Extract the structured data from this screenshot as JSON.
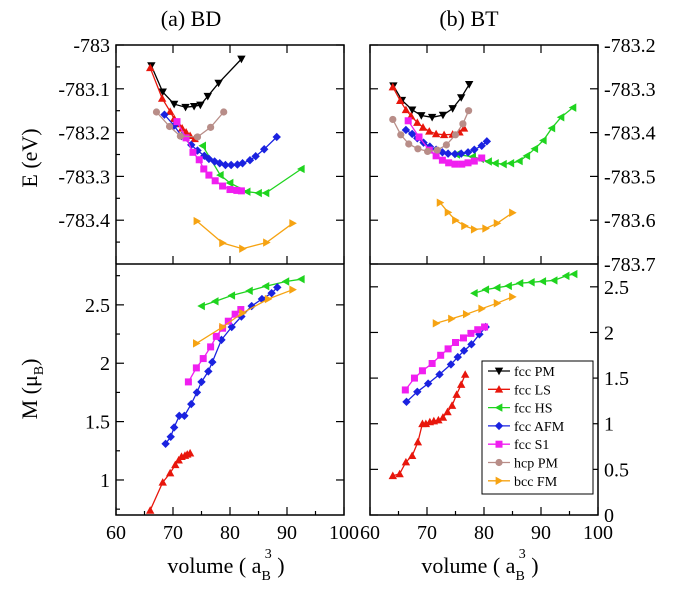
{
  "chart_data": [
    {
      "type": "line",
      "panel": "energy-bd",
      "title": "(a) BD",
      "ylabel": "E (eV)",
      "ylim": [
        -783.5,
        -783.0
      ],
      "yticks": [
        "-783",
        "-783.1",
        "-783.2",
        "-783.3",
        "-783.4"
      ],
      "xlim": [
        60,
        100
      ],
      "series": [
        {
          "name": "fcc PM",
          "x": [
            66.2,
            68.2,
            70.2,
            72.2,
            73.7,
            74.8,
            76.1,
            78.0,
            82.0
          ],
          "y": [
            -783.047,
            -783.107,
            -783.135,
            -783.142,
            -783.14,
            -783.137,
            -783.117,
            -783.087,
            -783.032
          ]
        },
        {
          "name": "fcc LS",
          "x": [
            66.0,
            68.1,
            69.5,
            70.2,
            70.9,
            71.6,
            72.3,
            73.0,
            73.8
          ],
          "y": [
            -783.052,
            -783.122,
            -783.152,
            -783.168,
            -783.18,
            -783.19,
            -783.199,
            -783.207,
            -783.214
          ]
        },
        {
          "name": "fcc HS",
          "x": [
            75.2,
            78.3,
            80.0,
            83.0,
            85.0,
            86.3,
            92.5
          ],
          "y": [
            -783.23,
            -783.297,
            -783.315,
            -783.335,
            -783.338,
            -783.338,
            -783.283
          ]
        },
        {
          "name": "fcc AFM",
          "x": [
            68.5,
            70.2,
            71.5,
            73.2,
            74.3,
            75.5,
            76.3,
            77.3,
            78.2,
            79.2,
            80.2,
            81.3,
            82.2,
            83.5,
            84.5,
            86.0,
            88.2
          ],
          "y": [
            -783.159,
            -783.184,
            -783.208,
            -783.228,
            -783.241,
            -783.253,
            -783.26,
            -783.266,
            -783.27,
            -783.274,
            -783.274,
            -783.273,
            -783.27,
            -783.263,
            -783.254,
            -783.238,
            -783.21
          ]
        },
        {
          "name": "fcc S1",
          "x": [
            70.7,
            72.3,
            73.5,
            74.6,
            75.4,
            76.3,
            77.4,
            78.7,
            80.0,
            81.2,
            82.0
          ],
          "y": [
            -783.175,
            -783.212,
            -783.245,
            -783.262,
            -783.283,
            -783.297,
            -783.31,
            -783.322,
            -783.33,
            -783.332,
            -783.333
          ]
        },
        {
          "name": "hcp PM",
          "x": [
            67.1,
            69.4,
            71.3,
            74.3,
            76.6,
            78.9
          ],
          "y": [
            -783.153,
            -783.186,
            -783.208,
            -783.21,
            -783.188,
            -783.153
          ]
        },
        {
          "name": "bcc FM",
          "x": [
            74.2,
            78.7,
            82.2,
            86.4,
            91.0
          ],
          "y": [
            -783.402,
            -783.452,
            -783.465,
            -783.451,
            -783.407
          ]
        }
      ]
    },
    {
      "type": "line",
      "panel": "moment-bd",
      "ylabel": "M (μB)",
      "ylim": [
        0.7,
        2.85
      ],
      "yticks": [
        "1",
        "1.5",
        "2",
        "2.5"
      ],
      "xlim": [
        60,
        100
      ],
      "xticks": [
        "60",
        "70",
        "80",
        "90",
        "100"
      ],
      "xlabel": "volume ( aB3 )",
      "series": [
        {
          "name": "fcc LS",
          "x": [
            66.0,
            68.2,
            69.5,
            70.4,
            71.0,
            71.5,
            72.1,
            72.5,
            73.0
          ],
          "y": [
            0.74,
            0.98,
            1.06,
            1.13,
            1.17,
            1.2,
            1.21,
            1.22,
            1.23
          ]
        },
        {
          "name": "fcc HS",
          "x": [
            75.0,
            77.4,
            80.3,
            83.4,
            86.3,
            89.8,
            92.5
          ],
          "y": [
            2.49,
            2.53,
            2.58,
            2.62,
            2.66,
            2.7,
            2.72
          ]
        },
        {
          "name": "fcc AFM",
          "x": [
            68.7,
            69.6,
            70.2,
            71.1,
            72.0,
            73.2,
            74.2,
            75.0,
            76.2,
            76.9,
            78.5,
            80.3,
            82.0,
            83.8,
            85.6,
            87.3,
            88.3
          ],
          "y": [
            1.31,
            1.37,
            1.45,
            1.55,
            1.55,
            1.65,
            1.75,
            1.84,
            1.93,
            2.01,
            2.2,
            2.31,
            2.4,
            2.49,
            2.55,
            2.6,
            2.65
          ]
        },
        {
          "name": "fcc S1",
          "x": [
            72.7,
            74.1,
            75.3,
            76.6,
            77.6,
            78.7,
            79.7,
            80.9,
            81.9
          ],
          "y": [
            1.84,
            1.96,
            2.04,
            2.14,
            2.23,
            2.3,
            2.36,
            2.42,
            2.46
          ]
        },
        {
          "name": "bcc FM",
          "x": [
            74.1,
            78.7,
            82.2,
            86.7,
            91.0
          ],
          "y": [
            2.17,
            2.31,
            2.43,
            2.55,
            2.63
          ]
        }
      ]
    },
    {
      "type": "line",
      "panel": "energy-bt",
      "title": "(b) BT",
      "ylabel_right": [
        "-783.2",
        "-783.3",
        "-783.4",
        "-783.5",
        "-783.6",
        "-783.7"
      ],
      "ylim": [
        -783.7,
        -783.2
      ],
      "xlim": [
        60,
        100
      ],
      "series": [
        {
          "name": "fcc PM",
          "x": [
            64.1,
            65.6,
            67.4,
            69.0,
            70.9,
            72.8,
            74.5,
            76.0,
            77.4
          ],
          "y": [
            -783.293,
            -783.326,
            -783.348,
            -783.361,
            -783.365,
            -783.36,
            -783.345,
            -783.32,
            -783.29
          ]
        },
        {
          "name": "fcc LS",
          "x": [
            64.0,
            65.3,
            66.3,
            67.2,
            68.3,
            69.3,
            70.4,
            71.6,
            73.0,
            74.5,
            75.7,
            76.5
          ],
          "y": [
            -783.296,
            -783.327,
            -783.348,
            -783.362,
            -783.377,
            -783.388,
            -783.397,
            -783.403,
            -783.405,
            -783.404,
            -783.399,
            -783.39
          ]
        },
        {
          "name": "fcc HS",
          "x": [
            75.2,
            78.0,
            79.4,
            80.8,
            82.0,
            83.4,
            84.7,
            86.2,
            87.5,
            88.9,
            90.4,
            91.9,
            93.5,
            95.6
          ],
          "y": [
            -783.45,
            -783.455,
            -783.46,
            -783.466,
            -783.47,
            -783.472,
            -783.47,
            -783.465,
            -783.453,
            -783.437,
            -783.418,
            -783.39,
            -783.365,
            -783.343
          ]
        },
        {
          "name": "fcc AFM",
          "x": [
            66.3,
            67.4,
            68.3,
            69.4,
            70.5,
            71.6,
            72.7,
            73.7,
            74.9,
            76.0,
            77.2,
            78.3,
            79.6,
            80.5
          ],
          "y": [
            -783.394,
            -783.403,
            -783.413,
            -783.423,
            -783.432,
            -783.439,
            -783.445,
            -783.448,
            -783.449,
            -783.448,
            -783.445,
            -783.439,
            -783.43,
            -783.42
          ]
        },
        {
          "name": "fcc S1",
          "x": [
            66.7,
            68.6,
            70.4,
            71.6,
            72.7,
            73.8,
            74.9,
            76.1,
            77.2,
            78.3,
            79.6
          ],
          "y": [
            -783.373,
            -783.41,
            -783.44,
            -783.453,
            -783.463,
            -783.469,
            -783.472,
            -783.472,
            -783.469,
            -783.465,
            -783.458
          ]
        },
        {
          "name": "hcp PM",
          "x": [
            64.0,
            65.4,
            66.8,
            68.4,
            70.1,
            71.8,
            73.4,
            75.0,
            76.3,
            77.3
          ],
          "y": [
            -783.37,
            -783.405,
            -783.426,
            -783.437,
            -783.443,
            -783.44,
            -783.428,
            -783.405,
            -783.38,
            -783.35
          ]
        },
        {
          "name": "bcc FM",
          "x": [
            72.3,
            73.7,
            75.0,
            76.6,
            78.3,
            80.3,
            82.3,
            85.0
          ],
          "y": [
            -783.56,
            -783.582,
            -783.6,
            -783.613,
            -783.621,
            -783.619,
            -783.607,
            -783.583
          ]
        }
      ]
    },
    {
      "type": "line",
      "panel": "moment-bt",
      "ylim": [
        0,
        2.75
      ],
      "yticks_right": [
        "0",
        "0.5",
        "1",
        "1.5",
        "2",
        "2.5"
      ],
      "xlim": [
        60,
        100
      ],
      "xticks": [
        "60",
        "70",
        "80",
        "90",
        "100"
      ],
      "xlabel": "volume ( aB3 )",
      "series": [
        {
          "name": "fcc LS",
          "x": [
            64.0,
            65.2,
            66.3,
            67.4,
            68.4,
            69.2,
            69.8,
            70.5,
            71.2,
            72.0,
            72.8,
            73.6,
            74.4,
            75.2,
            76.0,
            76.7
          ],
          "y": [
            0.43,
            0.45,
            0.58,
            0.65,
            0.8,
            1.0,
            1.0,
            1.02,
            1.03,
            1.04,
            1.07,
            1.13,
            1.2,
            1.32,
            1.43,
            1.54
          ]
        },
        {
          "name": "fcc HS",
          "x": [
            78.3,
            80.3,
            82.3,
            84.3,
            86.3,
            88.3,
            90.3,
            92.3,
            94.4,
            95.8
          ],
          "y": [
            2.43,
            2.47,
            2.49,
            2.51,
            2.54,
            2.55,
            2.56,
            2.57,
            2.62,
            2.64
          ]
        },
        {
          "name": "fcc AFM",
          "x": [
            66.4,
            68.3,
            70.2,
            72.2,
            74.2,
            75.4,
            76.5,
            77.8,
            79.2,
            80.3
          ],
          "y": [
            1.24,
            1.35,
            1.44,
            1.54,
            1.65,
            1.73,
            1.8,
            1.87,
            1.98,
            2.06
          ]
        },
        {
          "name": "fcc S1",
          "x": [
            66.2,
            67.8,
            69.2,
            70.9,
            72.4,
            73.7,
            75.0,
            76.4,
            77.7,
            78.9,
            80.1
          ],
          "y": [
            1.37,
            1.5,
            1.58,
            1.66,
            1.75,
            1.82,
            1.89,
            1.94,
            1.99,
            2.03,
            2.06
          ]
        },
        {
          "name": "bcc FM",
          "x": [
            71.6,
            74.3,
            76.9,
            79.6,
            82.3,
            85.0
          ],
          "y": [
            2.1,
            2.15,
            2.2,
            2.26,
            2.32,
            2.39
          ]
        }
      ]
    }
  ],
  "legend": {
    "items": [
      {
        "label": "fcc PM",
        "color": "#000000",
        "marker": "triangle-down"
      },
      {
        "label": "fcc LS",
        "color": "#e8160c",
        "marker": "triangle-up"
      },
      {
        "label": "fcc HS",
        "color": "#1fd41f",
        "marker": "triangle-left"
      },
      {
        "label": "fcc AFM",
        "color": "#1a22e0",
        "marker": "diamond"
      },
      {
        "label": "fcc S1",
        "color": "#f01ef0",
        "marker": "square"
      },
      {
        "label": "hcp PM",
        "color": "#b88d88",
        "marker": "circle"
      },
      {
        "label": "bcc FM",
        "color": "#f6a312",
        "marker": "triangle-right"
      }
    ]
  },
  "labels": {
    "title_a": "(a) BD",
    "title_b": "(b) BT",
    "ylabel_e_text": "E (eV)",
    "ylabel_m_main": "M (μ",
    "ylabel_m_sub": "B",
    "ylabel_m_close": ")",
    "xlabel_main": "volume ( a",
    "xlabel_sub": "B",
    "xlabel_sup": "3",
    "xlabel_close": " )"
  }
}
